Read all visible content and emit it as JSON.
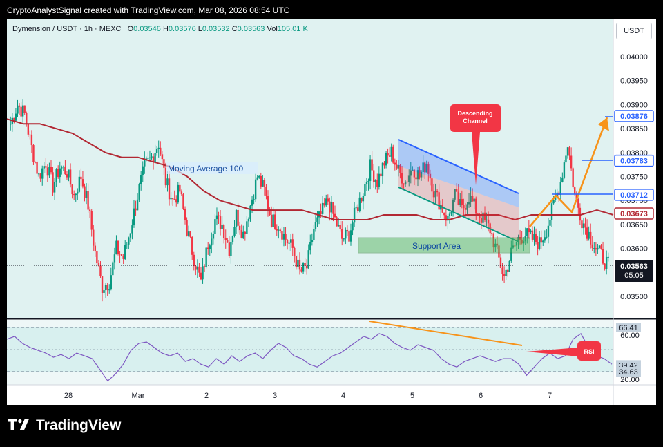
{
  "header": {
    "caption": "CryptoAnalystSignal created with TradingView.com, Mar 08, 2026 08:54 UTC"
  },
  "symbol": {
    "name": "Dymension / USDT · 1h · MEXC",
    "o_label": "O",
    "o": "0.03546",
    "h_label": "H",
    "h": "0.03576",
    "l_label": "L",
    "l": "0.03532",
    "c_label": "C",
    "c": "0.03563",
    "vol_label": "Vol",
    "vol": "105.01 K"
  },
  "currency": "USDT",
  "brand": "TradingView",
  "colors": {
    "up": "#089981",
    "down": "#f23645",
    "ma": "#b22833",
    "rsi": "#7e57c2",
    "channel": "#2962ff",
    "orange": "#f7931a",
    "support": "#4caf50"
  },
  "chart_data": [
    {
      "type": "candlestick",
      "title": "",
      "price_ticks": [
        "0.04000",
        "0.03950",
        "0.03900",
        "0.03850",
        "0.03800",
        "0.03750",
        "0.03700",
        "0.03650",
        "0.03600",
        "0.03500"
      ],
      "time_ticks": [
        "28",
        "Mar",
        "2",
        "3",
        "4",
        "5",
        "6",
        "7"
      ],
      "ylim": [
        0.0349,
        0.0406
      ],
      "price_labels": [
        {
          "text": "0.03876",
          "value": 0.03876,
          "color": "#2962ff"
        },
        {
          "text": "0.03783",
          "value": 0.03783,
          "color": "#2962ff"
        },
        {
          "text": "0.03712",
          "value": 0.03712,
          "color": "#2962ff"
        },
        {
          "text": "0.03673",
          "value": 0.03673,
          "color": "#b22833"
        }
      ],
      "last_price": {
        "price": "0.03563",
        "countdown": "05:05"
      },
      "annotations": {
        "moving_average": "Moving Average 100",
        "support": "Support Area",
        "channel": "Descending Channel"
      },
      "close_path": [
        0.0386,
        0.039,
        0.0388,
        0.0381,
        0.0375,
        0.0378,
        0.0373,
        0.0377,
        0.0376,
        0.0371,
        0.0375,
        0.0369,
        0.0359,
        0.0352,
        0.0353,
        0.036,
        0.0358,
        0.0364,
        0.0371,
        0.0377,
        0.0379,
        0.0382,
        0.0374,
        0.037,
        0.0372,
        0.0364,
        0.0358,
        0.0353,
        0.0361,
        0.0366,
        0.0365,
        0.036,
        0.0367,
        0.0363,
        0.0369,
        0.0375,
        0.0372,
        0.0366,
        0.0365,
        0.0362,
        0.036,
        0.0355,
        0.0356,
        0.0364,
        0.0367,
        0.037,
        0.0366,
        0.0362,
        0.0363,
        0.0368,
        0.0372,
        0.0377,
        0.0374,
        0.0378,
        0.038,
        0.0376,
        0.0374,
        0.0377,
        0.0375,
        0.0378,
        0.0372,
        0.0369,
        0.0366,
        0.0371,
        0.0368,
        0.0371,
        0.0368,
        0.0366,
        0.0364,
        0.0359,
        0.0354,
        0.0359,
        0.0362,
        0.0363,
        0.0362,
        0.0361,
        0.0364,
        0.0369,
        0.0374,
        0.0382,
        0.0371,
        0.0366,
        0.0363,
        0.036,
        0.0358,
        0.0356
      ],
      "ma_path": [
        0.0387,
        0.0386,
        0.0386,
        0.0385,
        0.0384,
        0.0382,
        0.038,
        0.0379,
        0.0379,
        0.0378,
        0.0377,
        0.0375,
        0.0372,
        0.037,
        0.0369,
        0.0368,
        0.0368,
        0.0368,
        0.0368,
        0.0367,
        0.0366,
        0.0366,
        0.0366,
        0.0367,
        0.0367,
        0.0367,
        0.0366,
        0.0366,
        0.0367,
        0.0367,
        0.0367,
        0.0366,
        0.0367,
        0.0367,
        0.0367,
        0.0367,
        0.0368,
        0.0367
      ]
    },
    {
      "type": "line",
      "series": [
        {
          "name": "RSI",
          "values": [
            58,
            60,
            55,
            52,
            50,
            48,
            45,
            47,
            44,
            48,
            46,
            44,
            36,
            28,
            33,
            40,
            50,
            55,
            56,
            52,
            48,
            46,
            48,
            42,
            44,
            40,
            38,
            44,
            40,
            46,
            42,
            46,
            48,
            44,
            50,
            55,
            52,
            46,
            44,
            40,
            38,
            42,
            46,
            48,
            52,
            56,
            60,
            58,
            62,
            60,
            55,
            52,
            50,
            54,
            52,
            50,
            44,
            40,
            38,
            42,
            44,
            46,
            44,
            42,
            44,
            44,
            40,
            32,
            38,
            44,
            48,
            44,
            46,
            58,
            62,
            52,
            46,
            44,
            40
          ]
        }
      ],
      "ylim": [
        14,
        72
      ],
      "ticks": [
        "60.00",
        "20.00"
      ],
      "level_labels": [
        {
          "text": "66.41",
          "value": 66.41
        },
        {
          "text": "39.42",
          "value": 39.42
        },
        {
          "text": "34.63",
          "value": 34.63
        }
      ],
      "annotations": {
        "rsi": "RSI"
      }
    }
  ]
}
